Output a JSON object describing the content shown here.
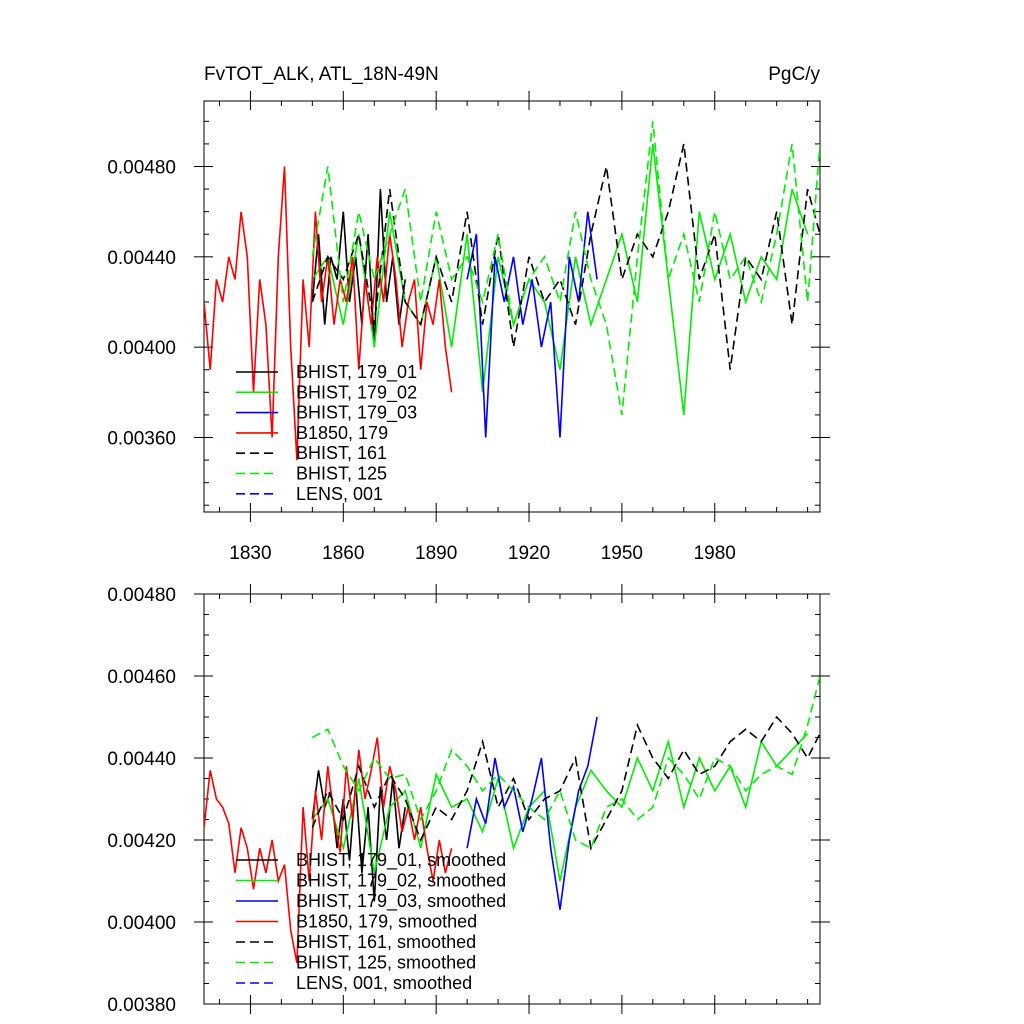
{
  "chart_data": [
    {
      "type": "line",
      "title_left": "FvTOT_ALK, ATL_18N-49N",
      "title_right": "PgC/y",
      "xlim": [
        1815,
        2014
      ],
      "ylim": [
        0.00327,
        0.00509
      ],
      "x_ticks": [
        1830,
        1860,
        1890,
        1920,
        1950,
        1980
      ],
      "x_tick_labels": [
        "1830",
        "1860",
        "1890",
        "1920",
        "1950",
        "1980"
      ],
      "y_ticks": [
        0.0036,
        0.004,
        0.0044,
        0.0048
      ],
      "y_tick_labels": [
        "0.00360",
        "0.00400",
        "0.00440",
        "0.00480"
      ],
      "legend_position": "lower-left",
      "series": [
        {
          "name": "BHIST, 179_01",
          "label": "BHIST, 179_01",
          "color": "#000000",
          "dash": "solid",
          "x": [
            1850,
            1852,
            1854,
            1856,
            1858,
            1860,
            1862,
            1864,
            1866,
            1868,
            1870,
            1872,
            1874,
            1876,
            1878,
            1880
          ],
          "y": [
            0.0042,
            0.0045,
            0.0041,
            0.0044,
            0.0043,
            0.0046,
            0.0042,
            0.0044,
            0.0041,
            0.0045,
            0.004,
            0.0047,
            0.0042,
            0.0044,
            0.0041,
            0.0043
          ]
        },
        {
          "name": "BHIST, 179_02",
          "label": "BHIST, 179_02",
          "color": "#00ee00",
          "dash": "solid",
          "x": [
            1850,
            1855,
            1860,
            1865,
            1870,
            1875,
            1880,
            1885,
            1890,
            1895,
            1900,
            1905,
            1910,
            1915,
            1920,
            1925,
            1930,
            1935,
            1940,
            1945,
            1950,
            1955,
            1960,
            1965,
            1970,
            1975,
            1980,
            1985,
            1990,
            1995,
            2000,
            2005,
            2010
          ],
          "y": [
            0.0043,
            0.0044,
            0.0041,
            0.0045,
            0.004,
            0.0046,
            0.0042,
            0.0041,
            0.0044,
            0.004,
            0.0045,
            0.0038,
            0.0044,
            0.0041,
            0.0043,
            0.0042,
            0.0039,
            0.0044,
            0.0041,
            0.0043,
            0.0045,
            0.0042,
            0.0049,
            0.0043,
            0.0037,
            0.0046,
            0.0043,
            0.0045,
            0.0042,
            0.0044,
            0.0043,
            0.0047,
            0.0045
          ]
        },
        {
          "name": "BHIST, 179_03",
          "label": "BHIST, 179_03",
          "color": "#0000ff",
          "dash": "solid",
          "x": [
            1900,
            1903,
            1906,
            1909,
            1912,
            1915,
            1918,
            1921,
            1924,
            1927,
            1930,
            1933,
            1936,
            1939,
            1942
          ],
          "y": [
            0.0043,
            0.0045,
            0.0036,
            0.0044,
            0.0042,
            0.0044,
            0.0041,
            0.0043,
            0.004,
            0.0042,
            0.0036,
            0.0044,
            0.0042,
            0.0046,
            0.0043
          ]
        },
        {
          "name": "B1850, 179",
          "label": "B1850, 179",
          "color": "#ff0000",
          "dash": "solid",
          "x": [
            1815,
            1817,
            1819,
            1821,
            1823,
            1825,
            1827,
            1829,
            1831,
            1833,
            1835,
            1837,
            1839,
            1841,
            1843,
            1845,
            1847,
            1849,
            1851,
            1853,
            1855,
            1857,
            1859,
            1861,
            1863,
            1865,
            1867,
            1869,
            1871,
            1873,
            1875,
            1877,
            1879,
            1881,
            1883,
            1885,
            1887,
            1889,
            1891,
            1893,
            1895
          ],
          "y": [
            0.0042,
            0.0039,
            0.0043,
            0.0042,
            0.0044,
            0.0043,
            0.0046,
            0.0044,
            0.0038,
            0.0043,
            0.0041,
            0.0036,
            0.0044,
            0.0048,
            0.004,
            0.0035,
            0.0043,
            0.004,
            0.0046,
            0.0042,
            0.0044,
            0.0041,
            0.0043,
            0.0042,
            0.0044,
            0.0039,
            0.0043,
            0.0041,
            0.0044,
            0.0042,
            0.0045,
            0.0043,
            0.004,
            0.0042,
            0.0043,
            0.0039,
            0.0042,
            0.0041,
            0.0043,
            0.004,
            0.0038
          ]
        },
        {
          "name": "BHIST, 161",
          "label": "BHIST, 161",
          "color": "#000000",
          "dash": "dashed",
          "x": [
            1850,
            1855,
            1860,
            1865,
            1870,
            1875,
            1880,
            1885,
            1890,
            1895,
            1900,
            1905,
            1910,
            1915,
            1920,
            1925,
            1930,
            1935,
            1940,
            1945,
            1950,
            1955,
            1960,
            1965,
            1970,
            1975,
            1980,
            1985,
            1990,
            1995,
            2000,
            2005,
            2010,
            2014
          ],
          "y": [
            0.0042,
            0.0044,
            0.0043,
            0.0045,
            0.0041,
            0.0047,
            0.0042,
            0.0041,
            0.0044,
            0.0042,
            0.0046,
            0.0041,
            0.0045,
            0.004,
            0.0044,
            0.0042,
            0.0043,
            0.0041,
            0.0045,
            0.0048,
            0.0043,
            0.0045,
            0.0044,
            0.0046,
            0.0049,
            0.0043,
            0.0045,
            0.0039,
            0.0044,
            0.0043,
            0.0046,
            0.0041,
            0.0047,
            0.0045
          ]
        },
        {
          "name": "BHIST, 125",
          "label": "BHIST, 125",
          "color": "#00ee00",
          "dash": "dashed",
          "x": [
            1850,
            1855,
            1860,
            1865,
            1870,
            1875,
            1880,
            1885,
            1890,
            1895,
            1900,
            1905,
            1910,
            1915,
            1920,
            1925,
            1930,
            1935,
            1940,
            1945,
            1950,
            1955,
            1960,
            1965,
            1970,
            1975,
            1980,
            1985,
            1990,
            1995,
            2000,
            2005,
            2010,
            2014
          ],
          "y": [
            0.0044,
            0.0048,
            0.0042,
            0.0046,
            0.0043,
            0.0045,
            0.0047,
            0.0042,
            0.0046,
            0.0043,
            0.0044,
            0.0042,
            0.0045,
            0.0041,
            0.0043,
            0.0044,
            0.0042,
            0.0046,
            0.0043,
            0.0041,
            0.0037,
            0.0044,
            0.005,
            0.0043,
            0.0045,
            0.0042,
            0.0046,
            0.0043,
            0.0044,
            0.0042,
            0.0045,
            0.0049,
            0.0042,
            0.0049
          ]
        },
        {
          "name": "LENS, 001",
          "label": "LENS, 001",
          "color": "#0000ff",
          "dash": "dashed",
          "x": [],
          "y": []
        }
      ]
    },
    {
      "type": "line",
      "xlim": [
        1815,
        2014
      ],
      "ylim": [
        0.0038,
        0.0048
      ],
      "x_ticks": [
        1830,
        1860,
        1890,
        1920,
        1950,
        1980
      ],
      "y_ticks": [
        0.0038,
        0.004,
        0.0042,
        0.0044,
        0.0046,
        0.0048
      ],
      "y_tick_labels": [
        "0.00380",
        "0.00400",
        "0.00420",
        "0.00440",
        "0.00460",
        "0.00480"
      ],
      "legend_position": "lower-left",
      "series": [
        {
          "name": "BHIST, 179_01, smoothed",
          "label": "BHIST, 179_01, smoothed",
          "color": "#000000",
          "dash": "solid",
          "x": [
            1850,
            1852,
            1854,
            1856,
            1858,
            1860,
            1862,
            1864,
            1866,
            1868,
            1870,
            1872,
            1874,
            1876,
            1878,
            1880
          ],
          "y": [
            0.00425,
            0.00437,
            0.00428,
            0.00432,
            0.00418,
            0.0043,
            0.00415,
            0.00434,
            0.00412,
            0.00428,
            0.00405,
            0.00433,
            0.0042,
            0.00435,
            0.00418,
            0.00428
          ]
        },
        {
          "name": "BHIST, 179_02, smoothed",
          "label": "BHIST, 179_02, smoothed",
          "color": "#00ee00",
          "dash": "solid",
          "x": [
            1850,
            1855,
            1860,
            1865,
            1870,
            1875,
            1880,
            1885,
            1890,
            1895,
            1900,
            1905,
            1910,
            1915,
            1920,
            1925,
            1930,
            1935,
            1940,
            1945,
            1950,
            1955,
            1960,
            1965,
            1970,
            1975,
            1980,
            1985,
            1990,
            1995,
            2000,
            2005,
            2010
          ],
          "y": [
            0.00425,
            0.0043,
            0.00418,
            0.00435,
            0.00412,
            0.00428,
            0.00432,
            0.00418,
            0.00436,
            0.00428,
            0.0043,
            0.00422,
            0.00435,
            0.00418,
            0.00428,
            0.00432,
            0.0041,
            0.00428,
            0.00437,
            0.00432,
            0.00428,
            0.0044,
            0.00432,
            0.00444,
            0.00428,
            0.0044,
            0.00432,
            0.00438,
            0.00428,
            0.00444,
            0.00438,
            0.00442,
            0.00446
          ]
        },
        {
          "name": "BHIST, 179_03, smoothed",
          "label": "BHIST, 179_03, smoothed",
          "color": "#0000ff",
          "dash": "solid",
          "x": [
            1900,
            1903,
            1906,
            1909,
            1912,
            1915,
            1918,
            1921,
            1924,
            1927,
            1930,
            1933,
            1936,
            1939,
            1942
          ],
          "y": [
            0.00418,
            0.0043,
            0.00424,
            0.0044,
            0.00428,
            0.00433,
            0.00422,
            0.0043,
            0.0044,
            0.00418,
            0.00403,
            0.0042,
            0.00432,
            0.00438,
            0.0045
          ]
        },
        {
          "name": "B1850, 179, smoothed",
          "label": "B1850, 179, smoothed",
          "color": "#ff0000",
          "dash": "solid",
          "x": [
            1815,
            1817,
            1819,
            1821,
            1823,
            1825,
            1827,
            1829,
            1831,
            1833,
            1835,
            1837,
            1839,
            1841,
            1843,
            1845,
            1847,
            1849,
            1851,
            1853,
            1855,
            1857,
            1859,
            1861,
            1863,
            1865,
            1867,
            1869,
            1871,
            1873,
            1875,
            1877,
            1879,
            1881,
            1883,
            1885,
            1887,
            1889,
            1891,
            1893,
            1895
          ],
          "y": [
            0.00423,
            0.00437,
            0.0043,
            0.00428,
            0.00424,
            0.00412,
            0.00423,
            0.00418,
            0.00408,
            0.00418,
            0.00412,
            0.0042,
            0.0041,
            0.00414,
            0.00398,
            0.0039,
            0.00428,
            0.0041,
            0.00432,
            0.0042,
            0.00438,
            0.00425,
            0.00417,
            0.00438,
            0.00425,
            0.00442,
            0.0043,
            0.00437,
            0.00445,
            0.00428,
            0.00438,
            0.00432,
            0.00422,
            0.00428,
            0.0042,
            0.00428,
            0.00418,
            0.0041,
            0.0042,
            0.00412,
            0.00418
          ]
        },
        {
          "name": "BHIST, 161, smoothed",
          "label": "BHIST, 161, smoothed",
          "color": "#000000",
          "dash": "dashed",
          "x": [
            1850,
            1855,
            1860,
            1865,
            1870,
            1875,
            1880,
            1885,
            1890,
            1895,
            1900,
            1905,
            1910,
            1915,
            1920,
            1925,
            1930,
            1935,
            1940,
            1945,
            1950,
            1955,
            1960,
            1965,
            1970,
            1975,
            1980,
            1985,
            1990,
            1995,
            2000,
            2005,
            2010,
            2014
          ],
          "y": [
            0.00423,
            0.00432,
            0.00425,
            0.00438,
            0.00428,
            0.00436,
            0.0043,
            0.0042,
            0.00428,
            0.00425,
            0.00432,
            0.00444,
            0.00428,
            0.00435,
            0.00425,
            0.0043,
            0.00432,
            0.0044,
            0.00418,
            0.00425,
            0.00432,
            0.00448,
            0.0044,
            0.00435,
            0.00442,
            0.00436,
            0.00438,
            0.00444,
            0.00447,
            0.00444,
            0.0045,
            0.00446,
            0.0044,
            0.00446
          ]
        },
        {
          "name": "BHIST, 125, smoothed",
          "label": "BHIST, 125, smoothed",
          "color": "#00ee00",
          "dash": "dashed",
          "x": [
            1850,
            1855,
            1860,
            1865,
            1870,
            1875,
            1880,
            1885,
            1890,
            1895,
            1900,
            1905,
            1910,
            1915,
            1920,
            1925,
            1930,
            1935,
            1940,
            1945,
            1950,
            1955,
            1960,
            1965,
            1970,
            1975,
            1980,
            1985,
            1990,
            1995,
            2000,
            2005,
            2010,
            2014
          ],
          "y": [
            0.00445,
            0.00447,
            0.00438,
            0.00432,
            0.0044,
            0.00435,
            0.00436,
            0.00425,
            0.00432,
            0.00442,
            0.00438,
            0.00432,
            0.00436,
            0.00432,
            0.00428,
            0.00425,
            0.00432,
            0.0042,
            0.00418,
            0.00428,
            0.0043,
            0.00425,
            0.00428,
            0.0044,
            0.00436,
            0.0043,
            0.0044,
            0.00438,
            0.00432,
            0.00436,
            0.00438,
            0.00436,
            0.00448,
            0.0046
          ]
        },
        {
          "name": "LENS, 001, smoothed",
          "label": "LENS, 001, smoothed",
          "color": "#0000ff",
          "dash": "dashed",
          "x": [],
          "y": []
        }
      ]
    }
  ]
}
